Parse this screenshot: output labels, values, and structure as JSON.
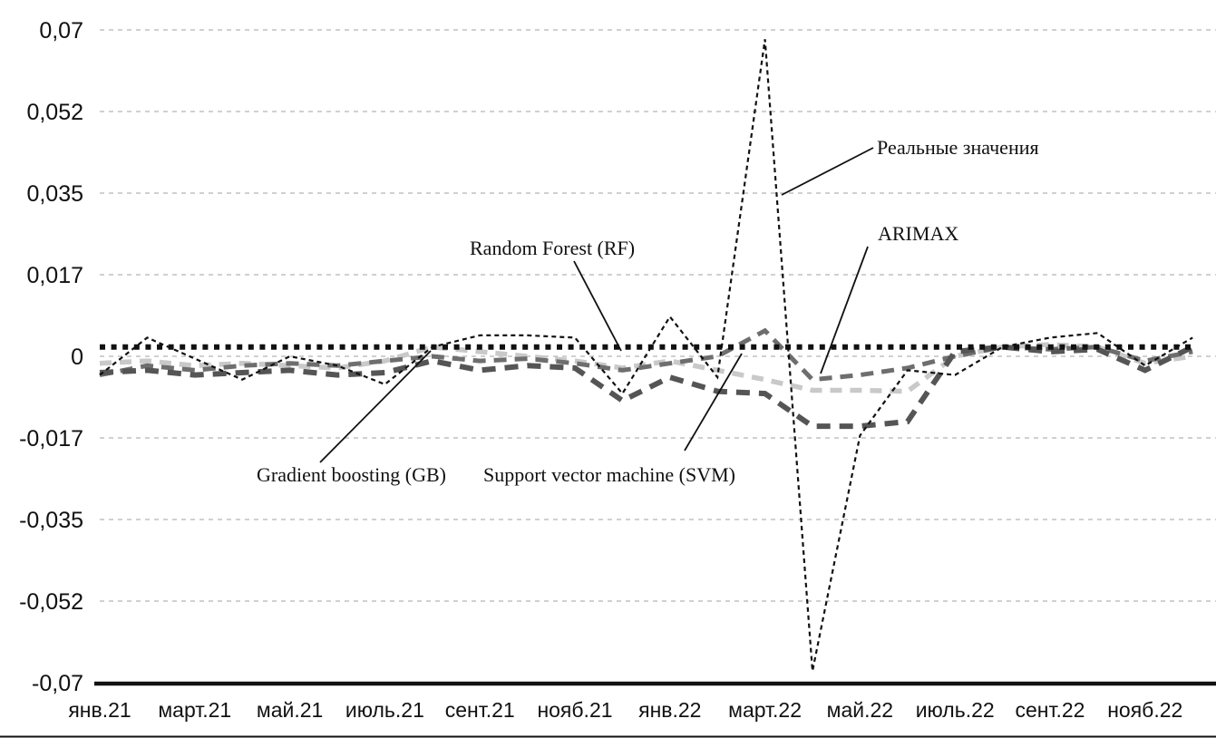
{
  "figure": {
    "background": "#ffffff",
    "axis_color": "#111111",
    "gridline_color": "#b3b3b3"
  },
  "chart_data": {
    "type": "line",
    "title": "",
    "xlabel": "",
    "ylabel": "",
    "grid": "horizontal-dashed",
    "legend_position": "inline-annotations",
    "ylim": [
      -0.07,
      0.07
    ],
    "n_points": 24,
    "points_per_tick": 2,
    "x_tick_labels": [
      "янв.21",
      "март.21",
      "май.21",
      "июль.21",
      "сент.21",
      "нояб.21",
      "янв.22",
      "март.22",
      "май.22",
      "июль.22",
      "сент.22",
      "нояб.22"
    ],
    "y_ticks": [
      {
        "label": "0,07",
        "value": 0.07
      },
      {
        "label": "0,052",
        "value": 0.0525
      },
      {
        "label": "0,035",
        "value": 0.035
      },
      {
        "label": "0,017",
        "value": 0.0175
      },
      {
        "label": "0",
        "value": 0
      },
      {
        "label": "-0,017",
        "value": -0.0175
      },
      {
        "label": "-0,035",
        "value": -0.035
      },
      {
        "label": "-0,052",
        "value": -0.0525
      },
      {
        "label": "-0,07",
        "value": -0.07
      }
    ],
    "series": [
      {
        "id": "gb",
        "name": "Gradient boosting (GB)",
        "color": "#c9c9c9",
        "style": "thick-dashed-light-gray",
        "values": [
          -0.0015,
          -0.001,
          -0.002,
          -0.0015,
          -0.002,
          -0.0025,
          -0.001,
          0.002,
          0.001,
          0,
          -0.001,
          -0.0025,
          -0.001,
          -0.003,
          -0.005,
          -0.0073,
          -0.0073,
          -0.0075,
          0,
          0.002,
          0.0025,
          0.002,
          -0.0015,
          0
        ]
      },
      {
        "id": "arimax",
        "name": "ARIMAX",
        "color": "#6e6e6e",
        "style": "thick-dashed-medium-gray",
        "values": [
          -0.004,
          -0.002,
          -0.003,
          -0.002,
          -0.0015,
          -0.002,
          -0.001,
          0,
          -0.001,
          -0.0005,
          -0.0015,
          -0.003,
          -0.0015,
          0,
          0.0055,
          -0.005,
          -0.004,
          -0.0025,
          0,
          0.002,
          0.0015,
          0.002,
          -0.001,
          0.001
        ]
      },
      {
        "id": "svm",
        "name": "Support vector machine (SVM)",
        "color": "#555555",
        "style": "thick-dashed-dark-gray",
        "values": [
          -0.0035,
          -0.003,
          -0.004,
          -0.0035,
          -0.003,
          -0.004,
          -0.0035,
          -0.001,
          -0.003,
          -0.002,
          -0.0025,
          -0.0095,
          -0.0045,
          -0.0075,
          -0.008,
          -0.015,
          -0.015,
          -0.014,
          0.001,
          0.002,
          0.001,
          0.0015,
          -0.003,
          0.002
        ]
      },
      {
        "id": "rf",
        "name": "Random Forest (RF)",
        "color": "#111111",
        "style": "thick-square-dotted-black",
        "values": [
          0.002,
          0.002,
          0.002,
          0.002,
          0.002,
          0.002,
          0.002,
          0.002,
          0.002,
          0.002,
          0.002,
          0.002,
          0.002,
          0.002,
          0.002,
          0.002,
          0.002,
          0.002,
          0.002,
          0.002,
          0.002,
          0.002,
          0.002,
          0.002
        ]
      },
      {
        "id": "real",
        "name": "Реальные значения",
        "color": "#111111",
        "style": "thin-dashed-black",
        "values": [
          -0.004,
          0.004,
          -0.0005,
          -0.005,
          0,
          -0.002,
          -0.006,
          0.002,
          0.0045,
          0.0045,
          0.004,
          -0.008,
          0.0085,
          -0.0045,
          0.068,
          -0.0675,
          -0.017,
          -0.003,
          -0.004,
          0.002,
          0.004,
          0.005,
          -0.002,
          0.004
        ]
      }
    ],
    "annotations": [
      {
        "id": "real",
        "text": "Реальные значения"
      },
      {
        "id": "rf",
        "text": "Random Forest (RF)"
      },
      {
        "id": "arimax",
        "text": "ARIMAX"
      },
      {
        "id": "gb",
        "text": "Gradient boosting (GB)"
      },
      {
        "id": "svm",
        "text": "Support vector machine (SVM)"
      }
    ]
  }
}
